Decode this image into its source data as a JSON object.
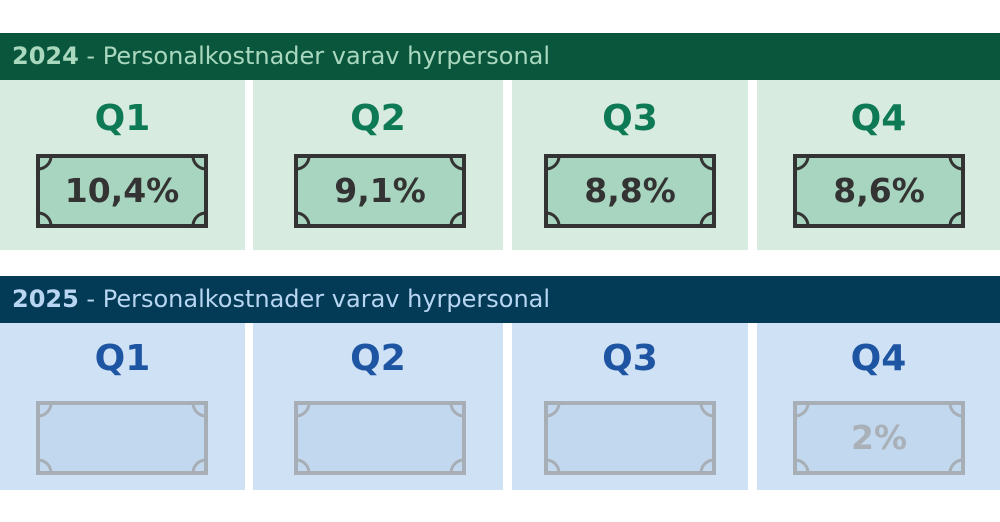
{
  "sections": [
    {
      "year": "2024",
      "title": " - Personalkostnader varav hyrpersonal",
      "colors": {
        "header": "#0a563d",
        "panel": "#d8ebe1",
        "quarter": "#0d7a55",
        "badge_fill": "#a8d5bf",
        "badge_stroke": "#333333"
      },
      "quarters": [
        {
          "label": "Q1",
          "value": "10,4%"
        },
        {
          "label": "Q2",
          "value": "9,1%"
        },
        {
          "label": "Q3",
          "value": "8,8%"
        },
        {
          "label": "Q4",
          "value": "8,6%"
        }
      ]
    },
    {
      "year": "2025",
      "title": " - Personalkostnader varav hyrpersonal",
      "colors": {
        "header": "#033a56",
        "panel": "#cfe1f4",
        "quarter": "#1d55a3",
        "badge_fill": "#c2d8ee",
        "badge_stroke": "#a8aeb5"
      },
      "quarters": [
        {
          "label": "Q1",
          "value": ""
        },
        {
          "label": "Q2",
          "value": ""
        },
        {
          "label": "Q3",
          "value": ""
        },
        {
          "label": "Q4",
          "value": "2%"
        }
      ]
    }
  ]
}
